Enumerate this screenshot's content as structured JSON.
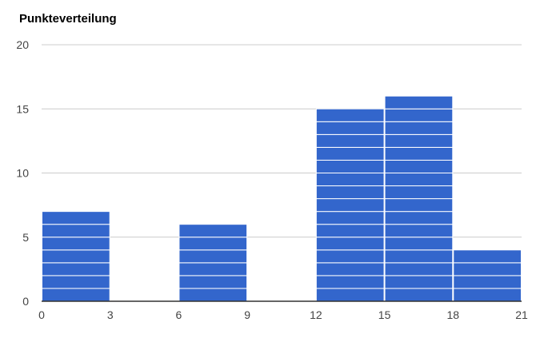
{
  "chart_data": {
    "type": "bar",
    "title": "Punkteverteilung",
    "xlabel": "",
    "ylabel": "",
    "bins": [
      {
        "start": 0,
        "end": 3,
        "count": 7
      },
      {
        "start": 3,
        "end": 6,
        "count": 0
      },
      {
        "start": 6,
        "end": 9,
        "count": 6
      },
      {
        "start": 9,
        "end": 12,
        "count": 0
      },
      {
        "start": 12,
        "end": 15,
        "count": 15
      },
      {
        "start": 15,
        "end": 18,
        "count": 16
      },
      {
        "start": 18,
        "end": 21,
        "count": 4
      }
    ],
    "x_ticks": [
      0,
      3,
      6,
      9,
      12,
      15,
      18,
      21
    ],
    "y_ticks": [
      0,
      5,
      10,
      15,
      20
    ],
    "xlim": [
      0,
      21
    ],
    "ylim": [
      0,
      20
    ],
    "grid": true,
    "legend": "none",
    "bar_color": "#3366cc",
    "grid_color": "#cccccc",
    "axis_color": "#333333"
  }
}
